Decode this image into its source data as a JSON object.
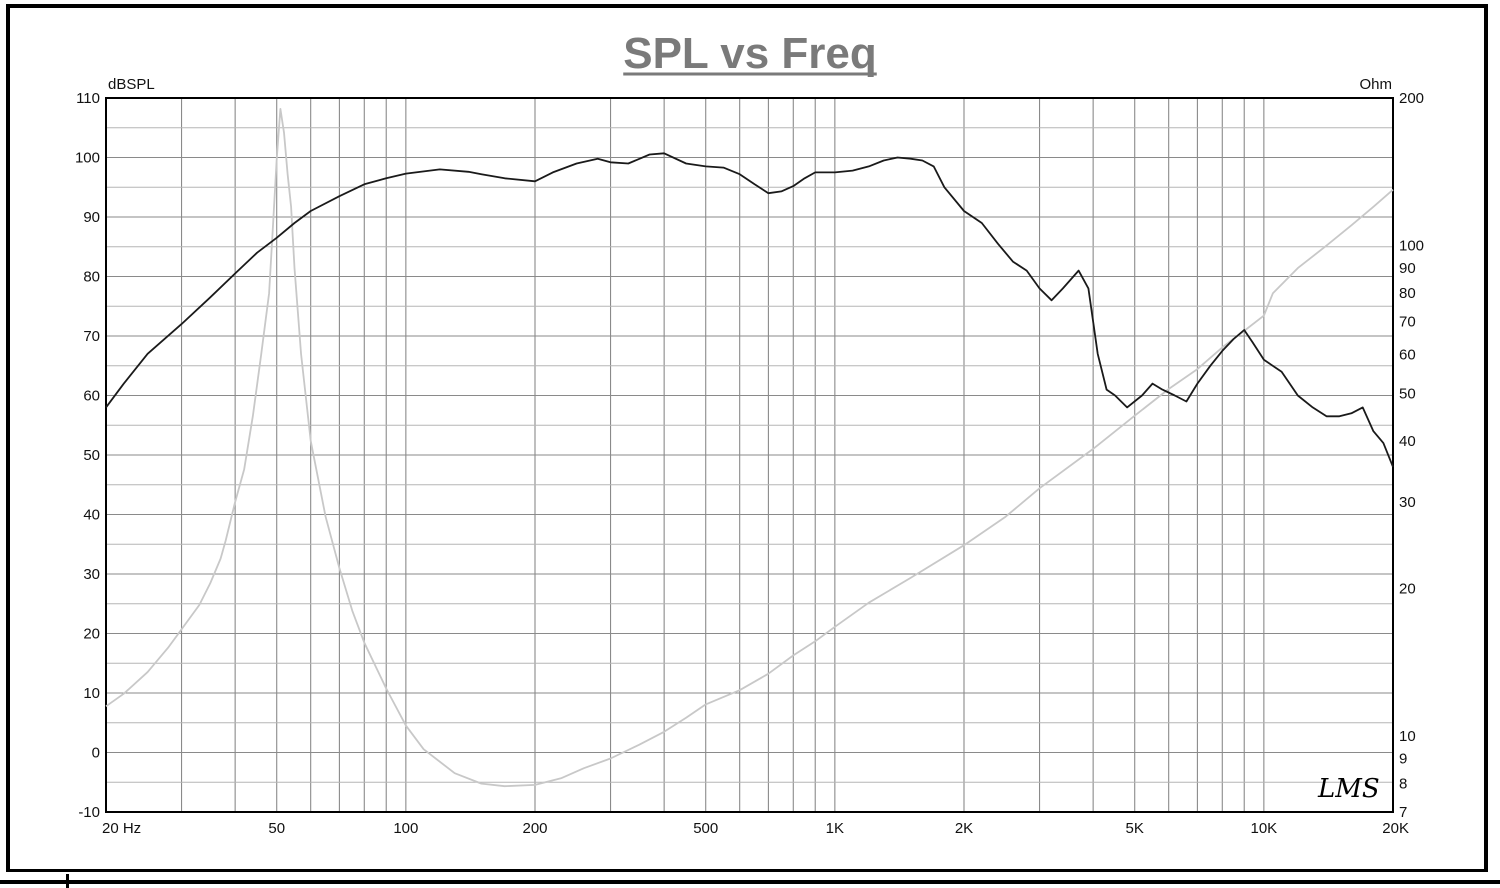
{
  "chart_data": {
    "type": "line",
    "title": "SPL vs Freq",
    "left_axis": {
      "unit_label": "dBSPL",
      "range": [
        -10,
        110
      ],
      "ticks": [
        "110",
        "100",
        "90",
        "80",
        "70",
        "60",
        "50",
        "40",
        "30",
        "20",
        "10",
        "0",
        "-10"
      ]
    },
    "right_axis": {
      "unit_label": "Ohm",
      "scale": "log",
      "range": [
        7,
        200
      ],
      "ticks": [
        "200",
        "100",
        "90",
        "80",
        "70",
        "60",
        "50",
        "40",
        "30",
        "20",
        "10",
        "9",
        "8",
        "7"
      ]
    },
    "x_axis": {
      "scale": "log",
      "range_hz": [
        20,
        20000
      ],
      "ticks": [
        {
          "label": "20  Hz",
          "hz": 20
        },
        {
          "label": "50",
          "hz": 50
        },
        {
          "label": "100",
          "hz": 100
        },
        {
          "label": "200",
          "hz": 200
        },
        {
          "label": "500",
          "hz": 500
        },
        {
          "label": "1K",
          "hz": 1000
        },
        {
          "label": "2K",
          "hz": 2000
        },
        {
          "label": "5K",
          "hz": 5000
        },
        {
          "label": "10K",
          "hz": 10000
        },
        {
          "label": "20K",
          "hz": 20000
        }
      ]
    },
    "grid": true,
    "logo": "LMS",
    "series": [
      {
        "axis": "left",
        "color": "#1a1a1a",
        "points": [
          [
            20,
            58
          ],
          [
            22,
            62
          ],
          [
            25,
            67
          ],
          [
            30,
            72
          ],
          [
            35,
            76.5
          ],
          [
            40,
            80.5
          ],
          [
            45,
            84
          ],
          [
            50,
            86.5
          ],
          [
            55,
            89
          ],
          [
            60,
            91
          ],
          [
            70,
            93.5
          ],
          [
            80,
            95.5
          ],
          [
            90,
            96.5
          ],
          [
            100,
            97.3
          ],
          [
            120,
            98
          ],
          [
            140,
            97.6
          ],
          [
            150,
            97.2
          ],
          [
            170,
            96.5
          ],
          [
            200,
            96
          ],
          [
            220,
            97.5
          ],
          [
            250,
            99
          ],
          [
            280,
            99.8
          ],
          [
            300,
            99.2
          ],
          [
            330,
            99
          ],
          [
            370,
            100.5
          ],
          [
            400,
            100.7
          ],
          [
            450,
            99
          ],
          [
            500,
            98.5
          ],
          [
            550,
            98.3
          ],
          [
            600,
            97.2
          ],
          [
            650,
            95.5
          ],
          [
            700,
            94
          ],
          [
            750,
            94.3
          ],
          [
            800,
            95.2
          ],
          [
            850,
            96.5
          ],
          [
            900,
            97.5
          ],
          [
            950,
            97.5
          ],
          [
            1000,
            97.5
          ],
          [
            1100,
            97.8
          ],
          [
            1200,
            98.5
          ],
          [
            1300,
            99.5
          ],
          [
            1400,
            100
          ],
          [
            1500,
            99.8
          ],
          [
            1600,
            99.5
          ],
          [
            1700,
            98.5
          ],
          [
            1800,
            95
          ],
          [
            2000,
            91
          ],
          [
            2200,
            89
          ],
          [
            2400,
            85.5
          ],
          [
            2600,
            82.5
          ],
          [
            2800,
            81
          ],
          [
            3000,
            78
          ],
          [
            3200,
            76
          ],
          [
            3400,
            78
          ],
          [
            3700,
            81
          ],
          [
            3900,
            78
          ],
          [
            4100,
            67
          ],
          [
            4300,
            61
          ],
          [
            4500,
            60
          ],
          [
            4800,
            58
          ],
          [
            5200,
            60
          ],
          [
            5500,
            62
          ],
          [
            5800,
            61
          ],
          [
            6200,
            60
          ],
          [
            6600,
            59
          ],
          [
            7000,
            62
          ],
          [
            7500,
            65
          ],
          [
            8000,
            67.5
          ],
          [
            8500,
            69.5
          ],
          [
            9000,
            71
          ],
          [
            9400,
            69
          ],
          [
            10000,
            66
          ],
          [
            11000,
            64
          ],
          [
            12000,
            60
          ],
          [
            13000,
            58
          ],
          [
            14000,
            56.5
          ],
          [
            15000,
            56.5
          ],
          [
            16000,
            57
          ],
          [
            17000,
            58
          ],
          [
            18000,
            54
          ],
          [
            19000,
            52
          ],
          [
            20000,
            48
          ]
        ]
      },
      {
        "axis": "right",
        "color": "#c8c8c8",
        "points": [
          [
            20,
            11.5
          ],
          [
            22,
            12.2
          ],
          [
            25,
            13.5
          ],
          [
            28,
            15.2
          ],
          [
            30,
            16.5
          ],
          [
            33,
            18.5
          ],
          [
            35,
            20.5
          ],
          [
            37,
            23
          ],
          [
            38,
            25
          ],
          [
            40,
            30
          ],
          [
            42,
            35
          ],
          [
            44,
            45
          ],
          [
            46,
            60
          ],
          [
            48,
            80
          ],
          [
            49,
            110
          ],
          [
            50,
            150
          ],
          [
            51,
            190
          ],
          [
            52,
            170
          ],
          [
            53,
            140
          ],
          [
            54,
            120
          ],
          [
            55,
            90
          ],
          [
            57,
            60
          ],
          [
            60,
            40
          ],
          [
            65,
            28
          ],
          [
            70,
            22
          ],
          [
            75,
            18
          ],
          [
            80,
            15.5
          ],
          [
            90,
            12.5
          ],
          [
            100,
            10.5
          ],
          [
            110,
            9.4
          ],
          [
            130,
            8.4
          ],
          [
            150,
            8.0
          ],
          [
            170,
            7.9
          ],
          [
            200,
            7.95
          ],
          [
            230,
            8.2
          ],
          [
            260,
            8.6
          ],
          [
            300,
            9.0
          ],
          [
            350,
            9.6
          ],
          [
            400,
            10.2
          ],
          [
            450,
            10.9
          ],
          [
            500,
            11.6
          ],
          [
            600,
            12.4
          ],
          [
            700,
            13.4
          ],
          [
            800,
            14.6
          ],
          [
            900,
            15.6
          ],
          [
            1000,
            16.7
          ],
          [
            1200,
            18.7
          ],
          [
            1500,
            21
          ],
          [
            2000,
            24.5
          ],
          [
            2500,
            28
          ],
          [
            3000,
            32
          ],
          [
            4000,
            38.5
          ],
          [
            5000,
            45
          ],
          [
            6000,
            51
          ],
          [
            7000,
            56
          ],
          [
            8000,
            62
          ],
          [
            9000,
            67
          ],
          [
            10000,
            72
          ],
          [
            10500,
            80
          ],
          [
            12000,
            90
          ],
          [
            14000,
            100
          ],
          [
            16000,
            110
          ],
          [
            18000,
            120
          ],
          [
            20000,
            130
          ]
        ]
      }
    ]
  }
}
